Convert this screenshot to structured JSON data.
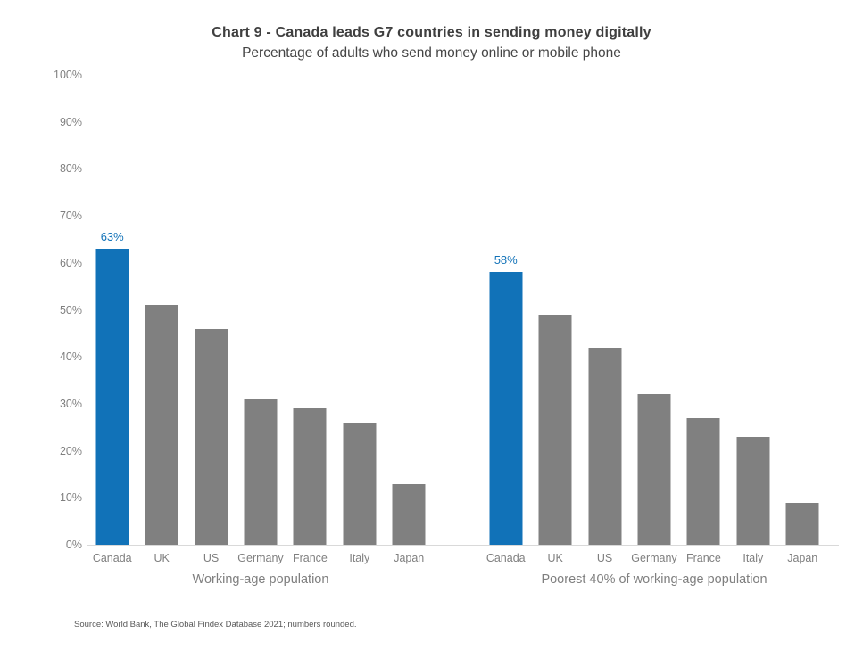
{
  "chart_data": {
    "type": "bar",
    "title": "Chart 9 - Canada leads G7 countries in sending money digitally",
    "subtitle": "Percentage of adults who send money online or mobile phone",
    "categories": [
      "Canada",
      "UK",
      "US",
      "Germany",
      "France",
      "Italy",
      "Japan"
    ],
    "series": [
      {
        "name": "Working-age population",
        "values": [
          63,
          51,
          46,
          31,
          29,
          26,
          13
        ]
      },
      {
        "name": "Poorest 40% of working-age population",
        "values": [
          58,
          49,
          42,
          32,
          27,
          23,
          9
        ]
      }
    ],
    "data_labels": [
      {
        "group": 0,
        "category": "Canada",
        "text": "63%"
      },
      {
        "group": 1,
        "category": "Canada",
        "text": "58%"
      }
    ],
    "highlight_category": "Canada",
    "y_axis": {
      "min": 0,
      "max": 100,
      "step": 10,
      "tick_labels": [
        "0%",
        "10%",
        "20%",
        "30%",
        "40%",
        "50%",
        "60%",
        "70%",
        "80%",
        "90%",
        "100%"
      ]
    },
    "xlabel": "",
    "ylabel": "",
    "legend": "none",
    "grid": "off",
    "colors": {
      "highlight_bar": "#1172b8",
      "default_bar": "#808080",
      "value_label": "#1172b8",
      "axis_text": "#7f7f7f",
      "title_text": "#3f3f3f",
      "baseline": "#d9d9d9",
      "source_text": "#595959"
    }
  },
  "source_note": "Source: World Bank, The Global Findex Database 2021; numbers rounded."
}
